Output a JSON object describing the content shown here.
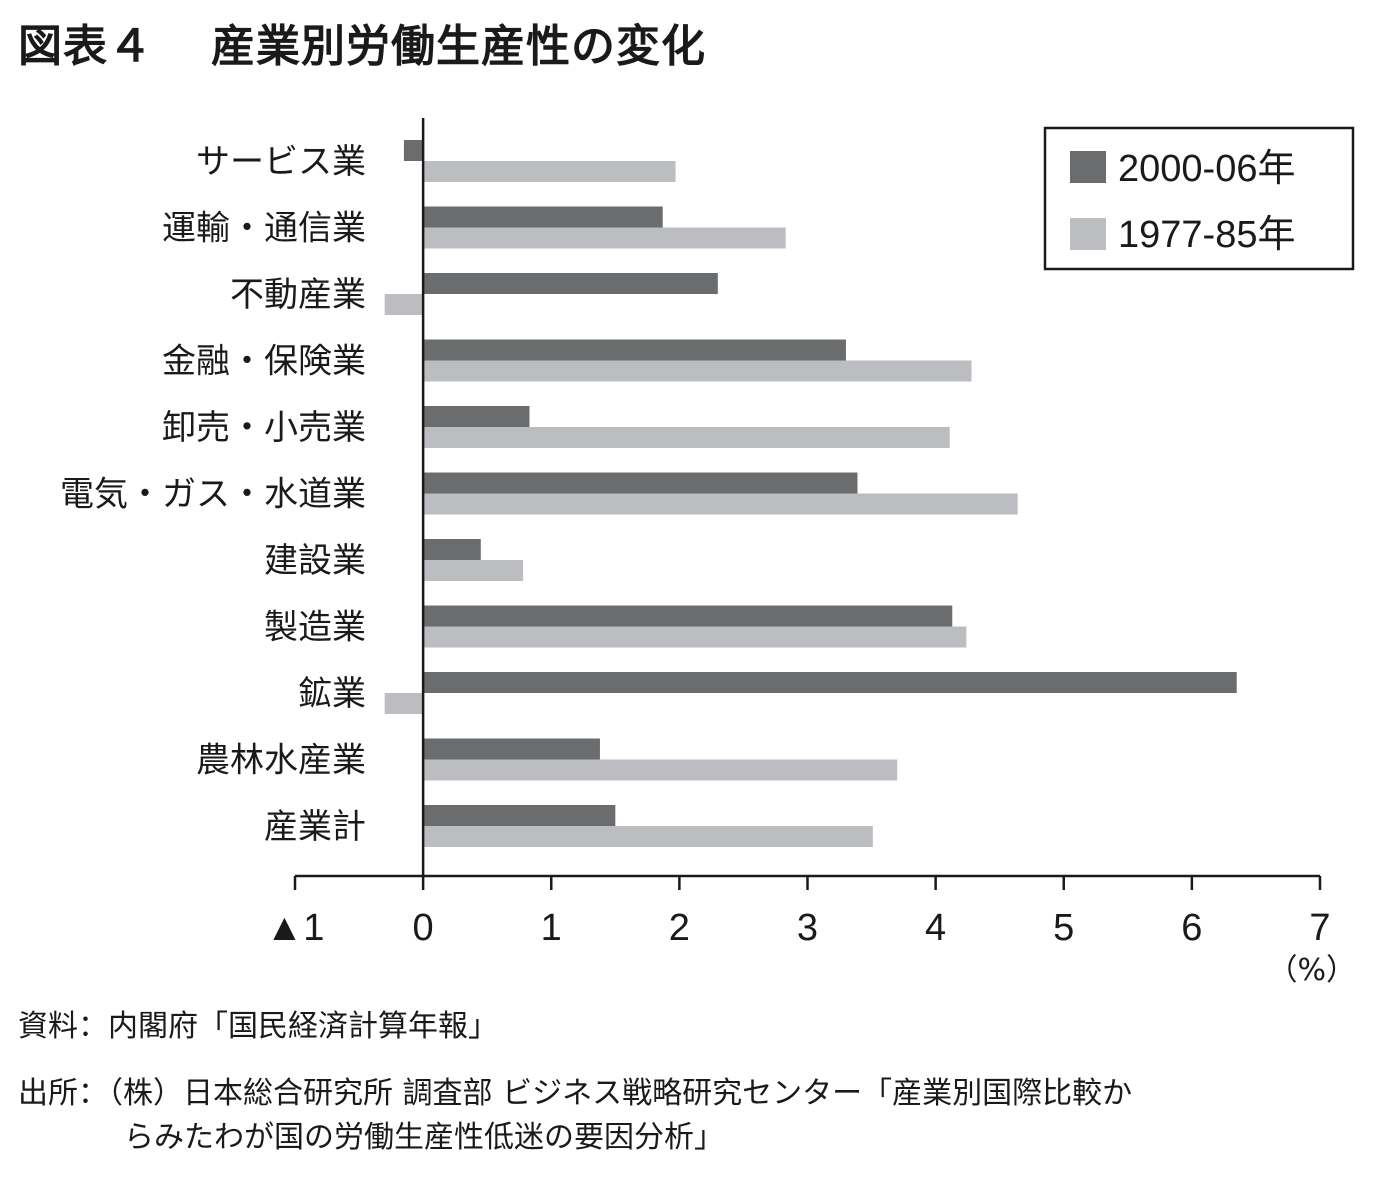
{
  "title": {
    "number": "図表４",
    "text": "産業別労働生産性の変化"
  },
  "chart_data": {
    "type": "bar",
    "orientation": "horizontal",
    "categories": [
      "サービス業",
      "運輸・通信業",
      "不動産業",
      "金融・保険業",
      "卸売・小売業",
      "電気・ガス・水道業",
      "建設業",
      "製造業",
      "鉱業",
      "農林水産業",
      "産業計"
    ],
    "series": [
      {
        "name": "2000-06年",
        "color": "#6b6c6e",
        "values": [
          -0.15,
          1.87,
          2.3,
          3.3,
          0.83,
          3.39,
          0.45,
          4.13,
          6.35,
          1.38,
          1.5
        ]
      },
      {
        "name": "1977-85年",
        "color": "#bcbdc0",
        "values": [
          1.97,
          2.83,
          -0.3,
          4.28,
          4.11,
          4.64,
          0.78,
          4.24,
          -0.3,
          3.7,
          3.51
        ]
      }
    ],
    "xlim": [
      -1,
      7
    ],
    "xticks": [
      -1,
      0,
      1,
      2,
      3,
      4,
      5,
      6,
      7
    ],
    "xtick_labels": [
      "▲1",
      "0",
      "1",
      "2",
      "3",
      "4",
      "5",
      "6",
      "7"
    ],
    "xlabel": "（%）",
    "legend_position": "top-right",
    "grid": false
  },
  "notes": {
    "source_data": "資料：内閣府「国民経済計算年報」",
    "source_line1": "出所：（株）日本総合研究所 調査部 ビジネス戦略研究センター「産業別国際比較か",
    "source_line2": "らみたわが国の労働生産性低迷の要因分析」"
  }
}
